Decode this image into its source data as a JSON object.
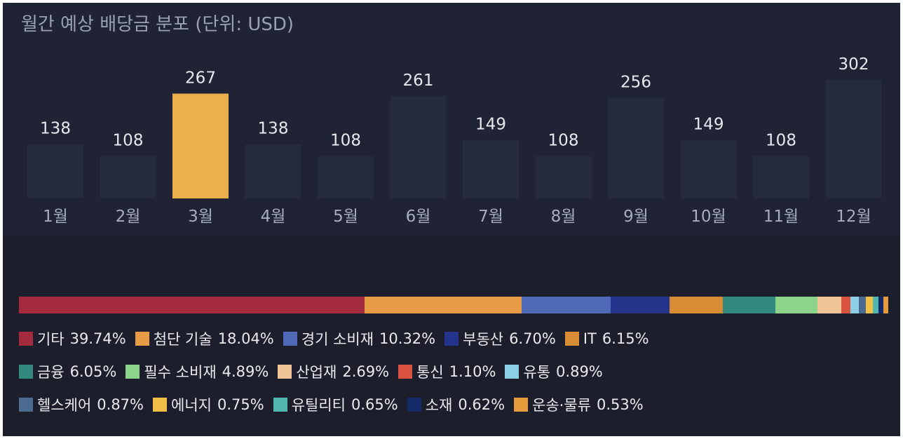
{
  "chart_data": [
    {
      "type": "bar",
      "title": "월간 예상 배당금 분포 (단위: USD)",
      "categories": [
        "1월",
        "2월",
        "3월",
        "4월",
        "5월",
        "6월",
        "7월",
        "8월",
        "9월",
        "10월",
        "11월",
        "12월"
      ],
      "values": [
        138,
        108,
        267,
        138,
        108,
        261,
        149,
        108,
        256,
        149,
        108,
        302
      ],
      "highlight_index": 2,
      "colors": {
        "default": "#262a3d",
        "highlight": "#e9b04c"
      }
    },
    {
      "type": "bar",
      "orientation": "horizontal-stacked",
      "series": [
        {
          "name": "기타",
          "value": 39.74,
          "label": "39.74%",
          "color": "#a42a3e"
        },
        {
          "name": "첨단 기술",
          "value": 18.04,
          "label": "18.04%",
          "color": "#e89b45"
        },
        {
          "name": "경기 소비재",
          "value": 10.32,
          "label": "10.32%",
          "color": "#4f69b7"
        },
        {
          "name": "부동산",
          "value": 6.7,
          "label": "6.70%",
          "color": "#23348a"
        },
        {
          "name": "IT",
          "value": 6.15,
          "label": "6.15%",
          "color": "#d88c33"
        },
        {
          "name": "금융",
          "value": 6.05,
          "label": "6.05%",
          "color": "#34897f"
        },
        {
          "name": "필수 소비재",
          "value": 4.89,
          "label": "4.89%",
          "color": "#8cd48a"
        },
        {
          "name": "산업재",
          "value": 2.69,
          "label": "2.69%",
          "color": "#f1c597"
        },
        {
          "name": "통신",
          "value": 1.1,
          "label": "1.10%",
          "color": "#d9533f"
        },
        {
          "name": "유통",
          "value": 0.89,
          "label": "0.89%",
          "color": "#8ccfe4"
        },
        {
          "name": "헬스케어",
          "value": 0.87,
          "label": "0.87%",
          "color": "#4a6a8f"
        },
        {
          "name": "에너지",
          "value": 0.75,
          "label": "0.75%",
          "color": "#f2bf46"
        },
        {
          "name": "유틸리티",
          "value": 0.65,
          "label": "0.65%",
          "color": "#4fb7ae"
        },
        {
          "name": "소재",
          "value": 0.62,
          "label": "0.62%",
          "color": "#142a66"
        },
        {
          "name": "운송·물류",
          "value": 0.53,
          "label": "0.53%",
          "color": "#e69a3b"
        }
      ]
    }
  ]
}
